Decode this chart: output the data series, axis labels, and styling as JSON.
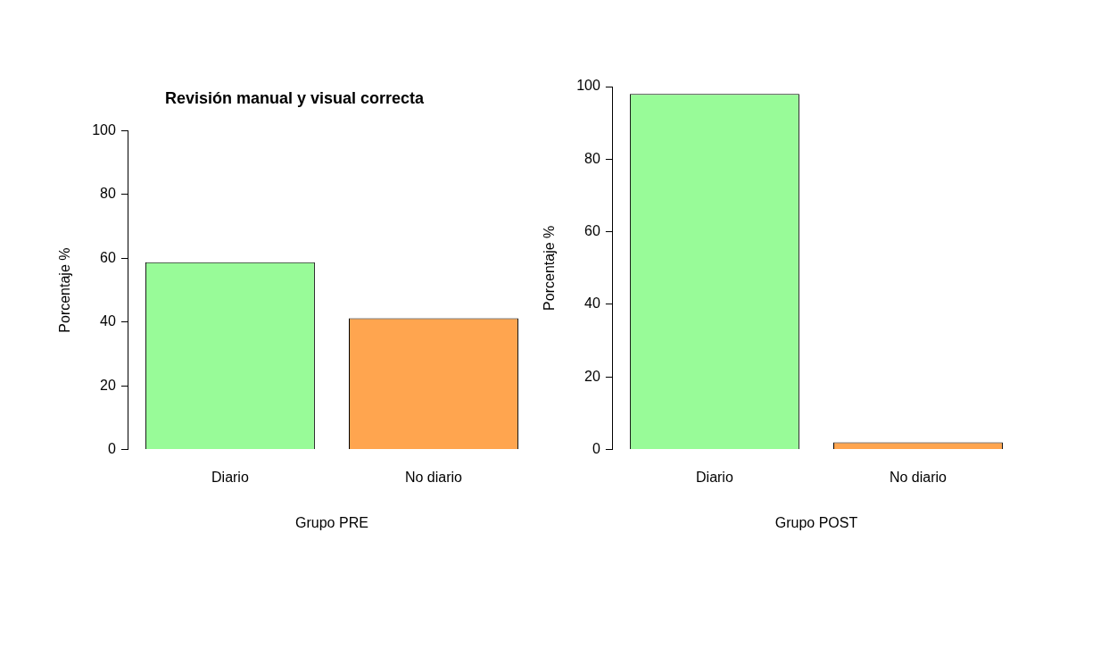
{
  "chart_data": [
    {
      "type": "bar",
      "title": "Revisión manual y visual correcta",
      "xlabel": "Grupo PRE",
      "ylabel": "Porcentaje %",
      "categories": [
        "Diario",
        "No diario"
      ],
      "values": [
        58.8,
        41.2
      ],
      "colors": [
        "#98fb98",
        "#ffa54f"
      ],
      "ylim": [
        0,
        100
      ],
      "yticks": [
        0,
        20,
        40,
        60,
        80,
        100
      ],
      "grid": false,
      "legend": false
    },
    {
      "type": "bar",
      "xlabel": "Grupo POST",
      "ylabel": "Porcentaje %",
      "categories": [
        "Diario",
        "No diario"
      ],
      "values": [
        98,
        2
      ],
      "colors": [
        "#98fb98",
        "#ffa54f"
      ],
      "ylim": [
        0,
        100
      ],
      "yticks": [
        0,
        20,
        40,
        60,
        80,
        100
      ],
      "grid": false,
      "legend": false
    }
  ]
}
